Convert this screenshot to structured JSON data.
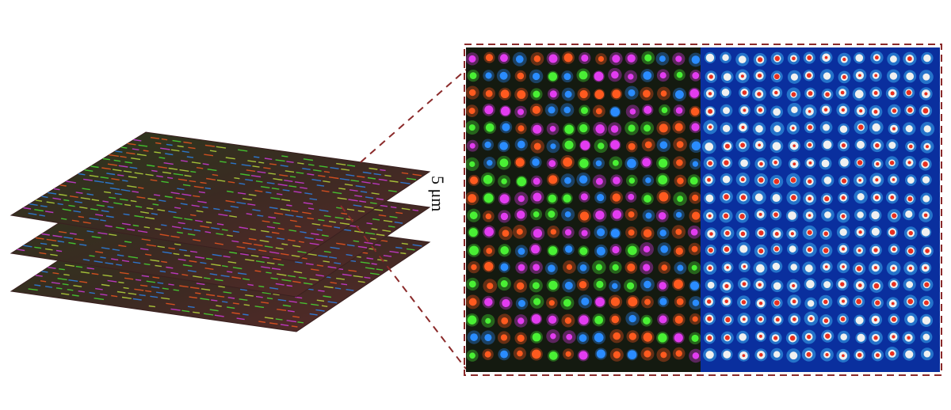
{
  "scale_bar": {
    "label": "5 μm"
  },
  "stack": {
    "layer_count": 3
  },
  "zoom_box": {
    "border_color": "#8b2a2a"
  },
  "panels": {
    "left": {
      "background": "#141a10",
      "spot_colors": [
        "#e23cf0",
        "#ff5a1f",
        "#49f034",
        "#2a8cff"
      ]
    },
    "right": {
      "background": "#0a2f9e",
      "spot_colors": [
        "#e83020",
        "#f0f0f0",
        "#45c8ff"
      ]
    }
  }
}
